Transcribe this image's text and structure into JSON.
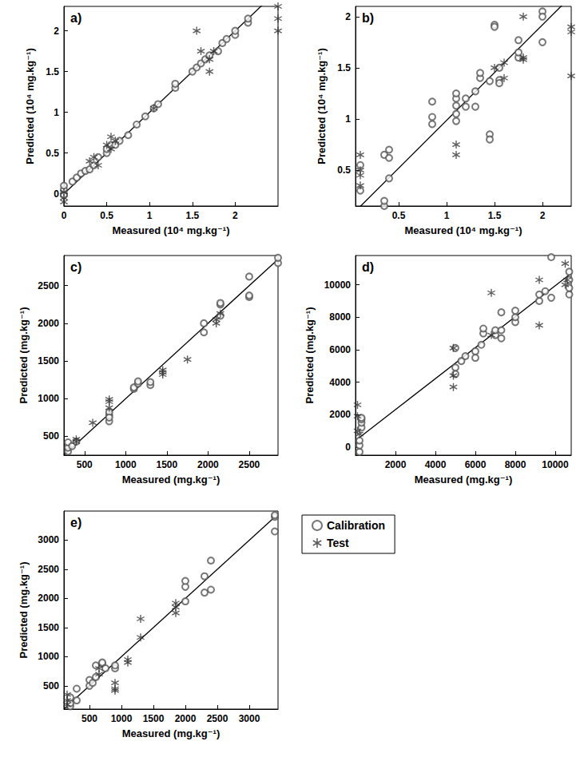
{
  "chart_data": [
    {
      "type": "scatter",
      "title": "a)",
      "xlabel": "Measured (10⁴ mg.kg⁻¹)",
      "ylabel": "Predicted (10⁴ mg.kg⁻¹)",
      "xlim": [
        0,
        2.5
      ],
      "ylim": [
        -0.15,
        2.3
      ],
      "xticks": [
        0,
        0.5,
        1,
        1.5,
        2
      ],
      "yticks": [
        0,
        0.5,
        1,
        1.5,
        2
      ],
      "grid": false,
      "series": [
        {
          "name": "Calibration",
          "color": "#555555",
          "marker": "circle_open",
          "x": [
            0,
            0,
            0,
            0,
            0.1,
            0.15,
            0.2,
            0.25,
            0.3,
            0.35,
            0.4,
            0.5,
            0.5,
            0.55,
            0.6,
            0.65,
            0.75,
            0.85,
            0.95,
            1.05,
            1.1,
            1.3,
            1.3,
            1.5,
            1.55,
            1.6,
            1.65,
            1.7,
            1.8,
            1.85,
            1.9,
            2,
            2,
            2.15,
            2.15
          ],
          "values": [
            0,
            0.05,
            -0.02,
            0.1,
            0.15,
            0.2,
            0.25,
            0.28,
            0.3,
            0.35,
            0.45,
            0.5,
            0.55,
            0.6,
            0.6,
            0.65,
            0.72,
            0.85,
            0.95,
            1.05,
            1.1,
            1.3,
            1.35,
            1.5,
            1.55,
            1.6,
            1.65,
            1.7,
            1.75,
            1.85,
            1.9,
            1.95,
            2.0,
            2.1,
            2.15
          ]
        },
        {
          "name": "Test",
          "color": "#333333",
          "marker": "asterisk",
          "x": [
            0,
            0,
            0,
            0.3,
            0.35,
            0.4,
            0.5,
            0.55,
            0.55,
            0.6,
            1.05,
            1.55,
            1.6,
            1.7,
            1.75,
            1.7,
            2.5,
            2.5,
            2.5
          ],
          "values": [
            -0.1,
            -0.05,
            0.02,
            0.4,
            0.45,
            0.35,
            0.6,
            0.7,
            0.55,
            0.65,
            1.05,
            2.0,
            1.75,
            1.5,
            1.75,
            1.65,
            2.3,
            2.15,
            2.0
          ]
        }
      ],
      "line": {
        "x": [
          0,
          2.5
        ],
        "values": [
          0,
          2.5
        ]
      }
    },
    {
      "type": "scatter",
      "title": "b)",
      "xlabel": "Measured (10⁴ mg.kg⁻¹)",
      "ylabel": "Predicted (10⁴ mg.kg⁻¹)",
      "xlim": [
        0.05,
        2.3
      ],
      "ylim": [
        0.15,
        2.1
      ],
      "xticks": [
        0.5,
        1,
        1.5,
        2
      ],
      "yticks": [
        0.5,
        1,
        1.5,
        2
      ],
      "grid": false,
      "series": [
        {
          "name": "Calibration",
          "color": "#555555",
          "marker": "circle_open",
          "x": [
            0.1,
            0.1,
            0.35,
            0.35,
            0.35,
            0.4,
            0.4,
            0.4,
            0.85,
            0.85,
            0.85,
            1.1,
            1.1,
            1.1,
            1.1,
            1.1,
            1.2,
            1.2,
            1.3,
            1.3,
            1.35,
            1.35,
            1.45,
            1.45,
            1.45,
            1.5,
            1.5,
            1.55,
            1.55,
            1.55,
            1.75,
            1.75,
            1.75,
            2.0,
            2.0,
            2.0
          ],
          "values": [
            0.55,
            0.3,
            0.15,
            0.2,
            0.65,
            0.7,
            0.62,
            0.42,
            1.17,
            1.02,
            0.95,
            1.05,
            0.98,
            1.13,
            1.2,
            1.25,
            1.2,
            1.12,
            1.12,
            1.27,
            1.4,
            1.45,
            0.85,
            0.8,
            1.37,
            1.92,
            1.9,
            1.5,
            1.38,
            1.35,
            1.77,
            1.6,
            1.65,
            2.05,
            2.0,
            1.75
          ]
        },
        {
          "name": "Test",
          "color": "#333333",
          "marker": "asterisk",
          "x": [
            0.1,
            0.1,
            0.1,
            0.1,
            1.1,
            1.1,
            1.5,
            1.6,
            1.6,
            1.8,
            1.8,
            1.8,
            2.3,
            2.3,
            2.3
          ],
          "values": [
            0.65,
            0.5,
            0.45,
            0.35,
            0.75,
            0.65,
            1.5,
            1.55,
            1.4,
            2.0,
            1.58,
            1.6,
            1.9,
            1.85,
            1.42
          ]
        }
      ],
      "line": {
        "x": [
          0.05,
          2.3
        ],
        "values": [
          0.1,
          2.2
        ]
      }
    },
    {
      "type": "scatter",
      "title": "c)",
      "xlabel": "Measured (mg.kg⁻¹)",
      "ylabel": "Predicted (mg.kg⁻¹)",
      "xlim": [
        250,
        2850
      ],
      "ylim": [
        250,
        2900
      ],
      "xticks": [
        500,
        1000,
        1500,
        2000,
        2500
      ],
      "yticks": [
        500,
        1000,
        1500,
        2000,
        2500
      ],
      "grid": false,
      "series": [
        {
          "name": "Calibration",
          "color": "#555555",
          "marker": "circle_open",
          "x": [
            300,
            300,
            300,
            350,
            400,
            800,
            800,
            800,
            800,
            1100,
            1100,
            1150,
            1150,
            1300,
            1300,
            1950,
            1950,
            2150,
            2150,
            2150,
            2500,
            2500,
            2500,
            2850,
            2850
          ],
          "values": [
            300,
            350,
            420,
            370,
            430,
            700,
            780,
            820,
            750,
            1130,
            1150,
            1200,
            1230,
            1180,
            1220,
            1880,
            2000,
            2100,
            2250,
            2270,
            2350,
            2370,
            2620,
            2800,
            2870
          ]
        },
        {
          "name": "Test",
          "color": "#333333",
          "marker": "asterisk",
          "x": [
            400,
            400,
            600,
            800,
            800,
            800,
            1450,
            1450,
            1450,
            1750,
            2100,
            2100,
            2150
          ],
          "values": [
            430,
            460,
            680,
            880,
            960,
            990,
            1320,
            1350,
            1380,
            1520,
            2000,
            2050,
            2130
          ]
        }
      ],
      "line": {
        "x": [
          250,
          2850
        ],
        "values": [
          250,
          2850
        ]
      }
    },
    {
      "type": "scatter",
      "title": "d)",
      "xlabel": "Measured (mg.kg⁻¹)",
      "ylabel": "Predicted (mg.kg⁻¹)",
      "xlim": [
        0,
        10800
      ],
      "ylim": [
        -500,
        11800
      ],
      "xticks": [
        2000,
        4000,
        6000,
        8000,
        10000
      ],
      "yticks": [
        0,
        2000,
        4000,
        6000,
        8000,
        10000
      ],
      "grid": false,
      "series": [
        {
          "name": "Calibration",
          "color": "#555555",
          "marker": "circle_open",
          "x": [
            200,
            200,
            200,
            300,
            300,
            300,
            300,
            5000,
            5000,
            5000,
            5300,
            5500,
            6000,
            6000,
            6300,
            6400,
            6400,
            7000,
            7000,
            7300,
            7300,
            7300,
            8000,
            8000,
            8000,
            9200,
            9200,
            9500,
            9800,
            9800,
            10700,
            10700,
            10700,
            10700
          ],
          "values": [
            -300,
            100,
            400,
            1200,
            1500,
            1700,
            1800,
            4500,
            4900,
            6100,
            5300,
            5600,
            5500,
            5900,
            6300,
            7000,
            7300,
            6900,
            7200,
            6700,
            7200,
            8300,
            7700,
            8000,
            8400,
            9000,
            9400,
            9600,
            9200,
            11700,
            9400,
            9800,
            10800,
            10300
          ]
        },
        {
          "name": "Test",
          "color": "#333333",
          "marker": "asterisk",
          "x": [
            100,
            100,
            100,
            200,
            4900,
            4900,
            4900,
            6800,
            6800,
            9200,
            9200,
            10500,
            10500,
            10600
          ],
          "values": [
            2600,
            1900,
            1000,
            800,
            6100,
            4400,
            3700,
            9500,
            6900,
            10300,
            7500,
            10000,
            11300,
            10300
          ]
        }
      ],
      "line": {
        "x": [
          0,
          10800
        ],
        "values": [
          400,
          10700
        ]
      }
    },
    {
      "type": "scatter",
      "title": "e)",
      "xlabel": "Measured (mg.kg⁻¹)",
      "ylabel": "Predicted (mg.kg⁻¹)",
      "xlim": [
        100,
        3450
      ],
      "ylim": [
        100,
        3500
      ],
      "xticks": [
        500,
        1000,
        1500,
        2000,
        2500,
        3000
      ],
      "yticks": [
        500,
        1000,
        1500,
        2000,
        2500,
        3000
      ],
      "grid": false,
      "legend": "bottom right",
      "series": [
        {
          "name": "Calibration",
          "color": "#555555",
          "marker": "circle_open",
          "x": [
            200,
            200,
            200,
            300,
            300,
            500,
            500,
            550,
            600,
            600,
            700,
            700,
            750,
            900,
            900,
            2000,
            2000,
            2000,
            2300,
            2300,
            2400,
            2400,
            3400,
            3400,
            3400
          ],
          "values": [
            150,
            200,
            300,
            250,
            450,
            500,
            600,
            550,
            650,
            850,
            880,
            900,
            800,
            800,
            850,
            1950,
            2200,
            2300,
            2100,
            2380,
            2150,
            2650,
            3150,
            3400,
            3430
          ]
        },
        {
          "name": "Test",
          "color": "#333333",
          "marker": "asterisk",
          "x": [
            150,
            150,
            150,
            650,
            650,
            900,
            900,
            900,
            1100,
            1100,
            1300,
            1300,
            1850,
            1850,
            1850
          ],
          "values": [
            180,
            250,
            350,
            700,
            800,
            450,
            550,
            420,
            900,
            950,
            1330,
            1650,
            1750,
            1850,
            1920
          ]
        }
      ],
      "line": {
        "x": [
          100,
          3450
        ],
        "values": [
          100,
          3450
        ]
      }
    }
  ]
}
